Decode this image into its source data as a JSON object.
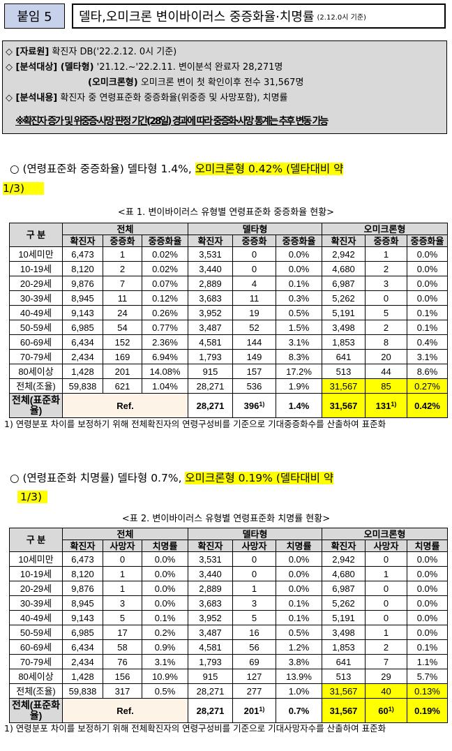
{
  "header": {
    "tag": "붙임 5",
    "title": "델타,오미크론 변이바이러스 중증화율·치명률",
    "title_note": "(2.12.0시 기준)"
  },
  "info": {
    "line1_label": "◇ [자료원]",
    "line1_text": " 확진자 DB('22.2.12. 0시 기준)",
    "line2_label": "◇ [분석대상] (델타형)",
    "line2_text": " '21.12.~'22.2.11. 변이분석 완료자 28,271명",
    "line3_label": "(오미크론형)",
    "line3_text": " 오미크론 변이 첫 확인이후 전수 31,567명",
    "line4_label": "◇ [분석내용]",
    "line4_text": " 확진자 중 연령표준화 중증화율(위중증 및 사망포함), 치명률",
    "warning": "※확진자 증가 및 위중증·사망 판정 기간(28일) 경과에 따라 중증화·사망 통계는 추후 변동 가능"
  },
  "summary1": {
    "prefix": "○ (연령표준화 중증화율) 델타형 1.4%, ",
    "highlight": "오미크론형 0.42% (델타대비 약",
    "highlight2": "1/3)"
  },
  "table1": {
    "caption": "<표 1. 변이바이러스 유형별 연령표준화 중증화율 현황>",
    "age_header": "구 분",
    "groups": [
      "전체",
      "델타형",
      "오미크론형"
    ],
    "subheaders": [
      "확진자",
      "중증화",
      "중증화율",
      "확진자",
      "중증화",
      "중증화율",
      "확진자",
      "중증화",
      "중증화율"
    ],
    "rows": [
      [
        "10세미만",
        "6,473",
        "1",
        "0.02%",
        "3,531",
        "0",
        "0.0%",
        "2,942",
        "1",
        "0.0%"
      ],
      [
        "10-19세",
        "8,120",
        "2",
        "0.02%",
        "3,440",
        "0",
        "0.0%",
        "4,680",
        "2",
        "0.0%"
      ],
      [
        "20-29세",
        "9,876",
        "7",
        "0.07%",
        "2,889",
        "4",
        "0.1%",
        "6,987",
        "3",
        "0.0%"
      ],
      [
        "30-39세",
        "8,945",
        "11",
        "0.12%",
        "3,683",
        "11",
        "0.3%",
        "5,262",
        "0",
        "0.0%"
      ],
      [
        "40-49세",
        "9,143",
        "24",
        "0.26%",
        "3,952",
        "19",
        "0.5%",
        "5,191",
        "5",
        "0.1%"
      ],
      [
        "50-59세",
        "6,985",
        "54",
        "0.77%",
        "3,487",
        "52",
        "1.5%",
        "3,498",
        "2",
        "0.1%"
      ],
      [
        "60-69세",
        "6,434",
        "152",
        "2.36%",
        "4,581",
        "144",
        "3.1%",
        "1,853",
        "8",
        "0.4%"
      ],
      [
        "70-79세",
        "2,434",
        "169",
        "6.94%",
        "1,793",
        "149",
        "8.3%",
        "641",
        "20",
        "3.1%"
      ],
      [
        "80세이상",
        "1,428",
        "201",
        "14.08%",
        "915",
        "157",
        "17.2%",
        "513",
        "44",
        "8.6%"
      ]
    ],
    "total": [
      "전체(조율)",
      "59,838",
      "621",
      "1.04%",
      "28,271",
      "536",
      "1.9%",
      "31,567",
      "85",
      "0.27%"
    ],
    "std_label": "전체(표준화율)",
    "std_ref": "Ref.",
    "std": [
      "28,271",
      "396",
      "1.4%",
      "31,567",
      "131",
      "0.42%"
    ],
    "sup": "1)",
    "footnote": "1) 연령분포 차이를 보정하기 위해 전체확진자의 연령구성비를 기준으로 기대중증화수를 산출하여 표준화"
  },
  "summary2": {
    "prefix": "○ (연령표준화 치명률) 델타형 0.7%, ",
    "highlight": "오미크론형 0.19% (델타대비 약",
    "highlight2": "1/3)"
  },
  "table2": {
    "caption": "<표 2. 변이바이러스 유형별 연령표준화 치명률 현황>",
    "age_header": "구 분",
    "groups": [
      "전체",
      "델타형",
      "오미크론형"
    ],
    "subheaders": [
      "확진자",
      "사망자",
      "치명률",
      "확진자",
      "사망자",
      "치명률",
      "확진자",
      "사망자",
      "치명률"
    ],
    "rows": [
      [
        "10세미만",
        "6,473",
        "0",
        "0.0%",
        "3,531",
        "0",
        "0.0%",
        "2,942",
        "0",
        "0.0%"
      ],
      [
        "10-19세",
        "8,120",
        "1",
        "0.0%",
        "3,440",
        "0",
        "0.0%",
        "4,680",
        "1",
        "0.0%"
      ],
      [
        "20-29세",
        "9,876",
        "1",
        "0.0%",
        "2,889",
        "1",
        "0.0%",
        "6,987",
        "0",
        "0.0%"
      ],
      [
        "30-39세",
        "8,945",
        "3",
        "0.0%",
        "3,683",
        "3",
        "0.1%",
        "5,262",
        "0",
        "0.0%"
      ],
      [
        "40-49세",
        "9,143",
        "5",
        "0.1%",
        "3,952",
        "5",
        "0.1%",
        "5,191",
        "0",
        "0.0%"
      ],
      [
        "50-59세",
        "6,985",
        "17",
        "0.2%",
        "3,487",
        "16",
        "0.5%",
        "3,498",
        "1",
        "0.0%"
      ],
      [
        "60-69세",
        "6,434",
        "58",
        "0.9%",
        "4,581",
        "56",
        "1.2%",
        "1,853",
        "2",
        "0.1%"
      ],
      [
        "70-79세",
        "2,434",
        "76",
        "3.1%",
        "1,793",
        "69",
        "3.8%",
        "641",
        "7",
        "1.1%"
      ],
      [
        "80세이상",
        "1,428",
        "156",
        "10.9%",
        "915",
        "127",
        "13.9%",
        "513",
        "29",
        "5.7%"
      ]
    ],
    "total": [
      "전체(조율)",
      "59,838",
      "317",
      "0.5%",
      "28,271",
      "277",
      "1.0%",
      "31,567",
      "40",
      "0.13%"
    ],
    "std_label": "전체(표준화율)",
    "std_ref": "Ref.",
    "std": [
      "28,271",
      "201",
      "0.7%",
      "31,567",
      "60",
      "0.19%"
    ],
    "sup": "1)",
    "footnote": "1) 연령분포 차이를 보정하기 위해 전체확진자의 연령구성비를 기준으로 기대사망자수를 산출하여 표준화"
  },
  "colors": {
    "tag_bg": "#c7d2ea",
    "highlight": "#ffff00",
    "header_bg": "#d9d9d9",
    "ref_bg": "#fdf4e7"
  }
}
